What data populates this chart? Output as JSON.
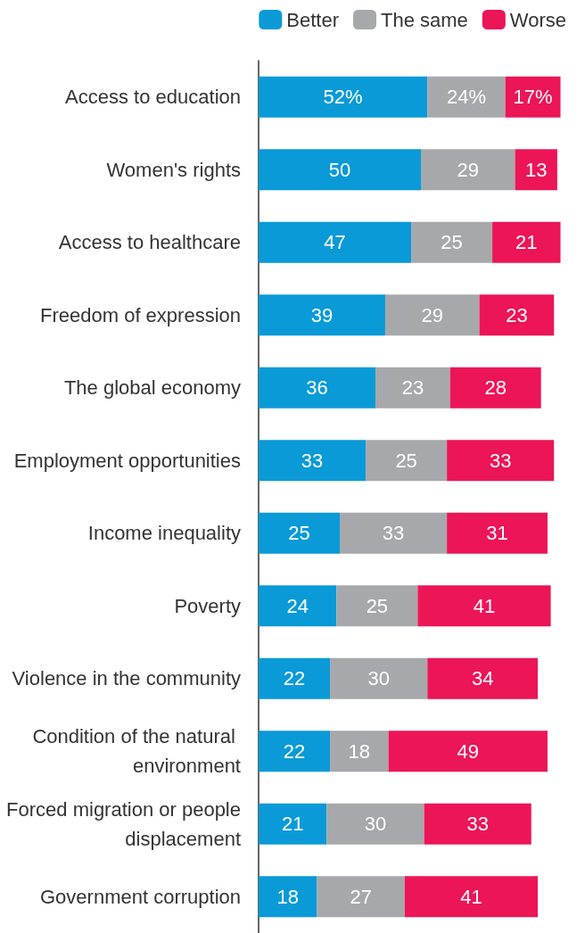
{
  "chart_data": {
    "type": "bar",
    "orientation": "horizontal",
    "stacked": true,
    "legend": "top right",
    "categories": [
      "Access to education",
      "Women's rights",
      "Access to healthcare",
      "Freedom of expression",
      "The global economy",
      "Employment opportunities",
      "Income inequality",
      "Poverty",
      "Violence in the community",
      "Condition of the natural environment",
      "Forced migration or people displacement",
      "Government corruption"
    ],
    "series": [
      {
        "name": "Better",
        "color": "#0a9ad7",
        "values": [
          52,
          50,
          47,
          39,
          36,
          33,
          25,
          24,
          22,
          22,
          21,
          18
        ],
        "value_labels": [
          "52%",
          "50",
          "47",
          "39",
          "36",
          "33",
          "25",
          "24",
          "22",
          "22",
          "21",
          "18"
        ]
      },
      {
        "name": "The same",
        "color": "#a7a8ab",
        "values": [
          24,
          29,
          25,
          29,
          23,
          25,
          33,
          25,
          30,
          18,
          30,
          27
        ],
        "value_labels": [
          "24%",
          "29",
          "25",
          "29",
          "23",
          "25",
          "33",
          "25",
          "30",
          "18",
          "30",
          "27"
        ]
      },
      {
        "name": "Worse",
        "color": "#ec1558",
        "values": [
          17,
          13,
          21,
          23,
          28,
          33,
          31,
          41,
          34,
          49,
          33,
          41
        ],
        "value_labels": [
          "17%",
          "13",
          "21",
          "23",
          "28",
          "33",
          "31",
          "41",
          "34",
          "49",
          "33",
          "41"
        ]
      }
    ]
  }
}
